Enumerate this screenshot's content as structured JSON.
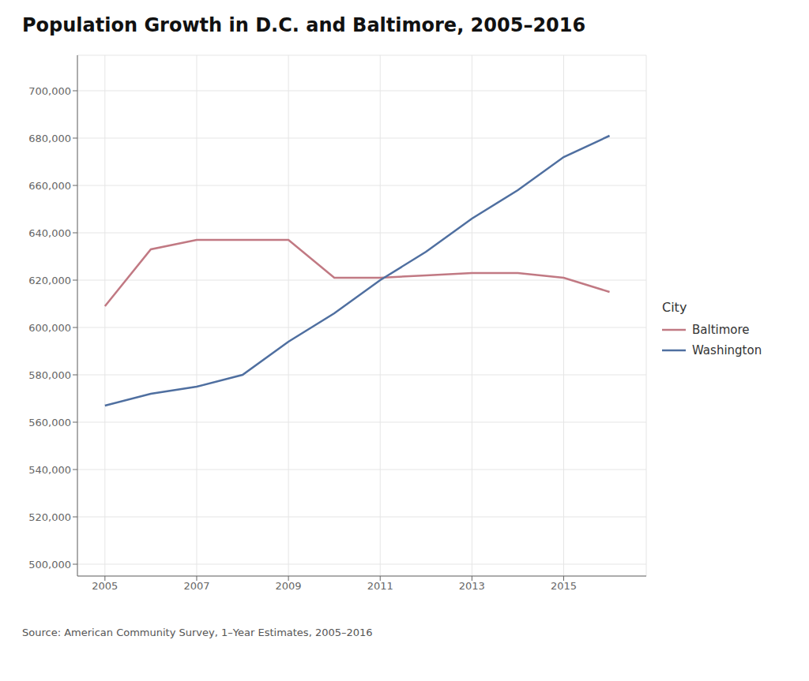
{
  "chart_data": {
    "type": "line",
    "title": "Population Growth in D.C. and Baltimore, 2005–2016",
    "source": "Source:  American Community Survey, 1–Year Estimates, 2005–2016",
    "legend_title": "City",
    "legend": "right",
    "grid": true,
    "x": [
      2005,
      2006,
      2007,
      2008,
      2009,
      2010,
      2011,
      2012,
      2013,
      2014,
      2015,
      2016
    ],
    "series": [
      {
        "name": "Baltimore",
        "color": "#c17983",
        "values": [
          609000,
          633000,
          637000,
          637000,
          637000,
          621000,
          621000,
          622000,
          623000,
          623000,
          621000,
          615000
        ]
      },
      {
        "name": "Washington",
        "color": "#4f6fa0",
        "values": [
          567000,
          572000,
          575000,
          580000,
          594000,
          606000,
          620000,
          632000,
          646000,
          658000,
          672000,
          681000
        ]
      }
    ],
    "xlim": [
      2004.4,
      2016.8
    ],
    "xticks": [
      2005,
      2007,
      2009,
      2011,
      2013,
      2015
    ],
    "ylim": [
      495000,
      715000
    ],
    "yticks": [
      {
        "value": 500000,
        "label": "500,000"
      },
      {
        "value": 520000,
        "label": "520,000"
      },
      {
        "value": 540000,
        "label": "540,000"
      },
      {
        "value": 560000,
        "label": "560,000"
      },
      {
        "value": 580000,
        "label": "580,000"
      },
      {
        "value": 600000,
        "label": "600,000"
      },
      {
        "value": 620000,
        "label": "620,000"
      },
      {
        "value": 640000,
        "label": "640,000"
      },
      {
        "value": 660000,
        "label": "660,000"
      },
      {
        "value": 680000,
        "label": "680,000"
      },
      {
        "value": 700000,
        "label": "700,000"
      }
    ]
  }
}
